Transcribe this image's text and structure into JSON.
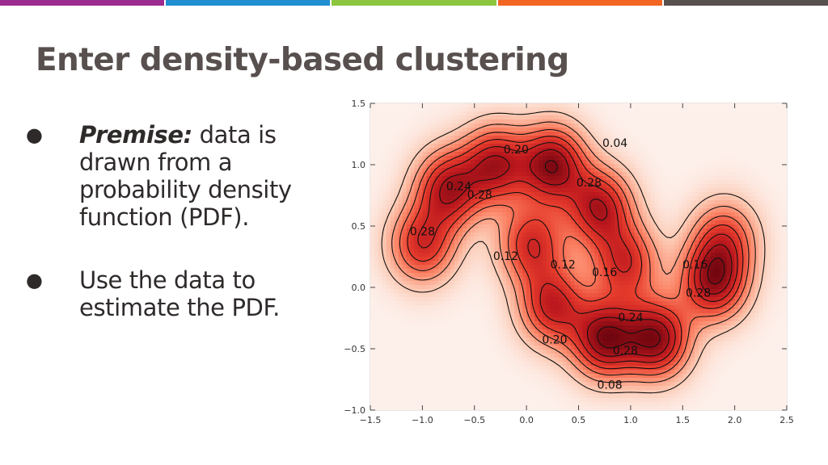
{
  "slide": {
    "title": "Enter density-based clustering",
    "top_bar_colors": [
      "#9c2b8f",
      "#1f8fd0",
      "#8cc63e",
      "#f26522",
      "#58504f"
    ],
    "title_color": "#58504f"
  },
  "bullets": [
    {
      "marker": "●",
      "emphasis": "Premise:",
      "text": " data is drawn from a probability density function (PDF)."
    },
    {
      "marker": "●",
      "emphasis": "",
      "text": "Use the data to estimate the PDF."
    }
  ],
  "chart_data": {
    "type": "heatmap",
    "title": "",
    "xlabel": "",
    "ylabel": "",
    "xlim": [
      -1.5,
      2.5
    ],
    "ylim": [
      -1.0,
      1.5
    ],
    "x_ticks": [
      "−1.5",
      "−1.0",
      "−0.5",
      "0.0",
      "0.5",
      "1.0",
      "1.5",
      "2.0",
      "2.5"
    ],
    "y_ticks": [
      "1.5",
      "1.0",
      "0.5",
      "0.0",
      "−0.5",
      "−1.0"
    ],
    "colormap": "Reds",
    "contour_levels": [
      0.04,
      0.08,
      0.12,
      0.16,
      0.2,
      0.24,
      0.28
    ],
    "contour_labels": [
      {
        "text": "0.04",
        "x": 0.85,
        "y": 1.17
      },
      {
        "text": "0.20",
        "x": -0.1,
        "y": 1.12
      },
      {
        "text": "0.24",
        "x": -0.65,
        "y": 0.82
      },
      {
        "text": "0.28",
        "x": -0.45,
        "y": 0.75
      },
      {
        "text": "0.28",
        "x": -1.0,
        "y": 0.45
      },
      {
        "text": "0.28",
        "x": 0.6,
        "y": 0.85
      },
      {
        "text": "0.12",
        "x": -0.2,
        "y": 0.25
      },
      {
        "text": "0.12",
        "x": 0.35,
        "y": 0.18
      },
      {
        "text": "0.16",
        "x": 0.75,
        "y": 0.12
      },
      {
        "text": "0.16",
        "x": 1.62,
        "y": 0.18
      },
      {
        "text": "0.28",
        "x": 1.65,
        "y": -0.05
      },
      {
        "text": "0.24",
        "x": 1.0,
        "y": -0.25
      },
      {
        "text": "0.20",
        "x": 0.27,
        "y": -0.43
      },
      {
        "text": "0.28",
        "x": 0.95,
        "y": -0.52
      },
      {
        "text": "0.08",
        "x": 0.8,
        "y": -0.8
      }
    ],
    "density_components": [
      {
        "x": -1.0,
        "y": 0.35,
        "weight": 0.1,
        "sigma": 0.22
      },
      {
        "x": -0.75,
        "y": 0.8,
        "weight": 0.12,
        "sigma": 0.22
      },
      {
        "x": -0.3,
        "y": 1.0,
        "weight": 0.12,
        "sigma": 0.22
      },
      {
        "x": 0.25,
        "y": 1.0,
        "weight": 0.14,
        "sigma": 0.22
      },
      {
        "x": 0.7,
        "y": 0.65,
        "weight": 0.12,
        "sigma": 0.22
      },
      {
        "x": 0.95,
        "y": 0.2,
        "weight": 0.1,
        "sigma": 0.22
      },
      {
        "x": 0.05,
        "y": 0.35,
        "weight": 0.1,
        "sigma": 0.22
      },
      {
        "x": 0.25,
        "y": -0.15,
        "weight": 0.11,
        "sigma": 0.22
      },
      {
        "x": 0.75,
        "y": -0.42,
        "weight": 0.14,
        "sigma": 0.22
      },
      {
        "x": 1.25,
        "y": -0.42,
        "weight": 0.14,
        "sigma": 0.22
      },
      {
        "x": 1.8,
        "y": 0.05,
        "weight": 0.13,
        "sigma": 0.22
      },
      {
        "x": 1.9,
        "y": 0.4,
        "weight": 0.08,
        "sigma": 0.22
      }
    ]
  }
}
